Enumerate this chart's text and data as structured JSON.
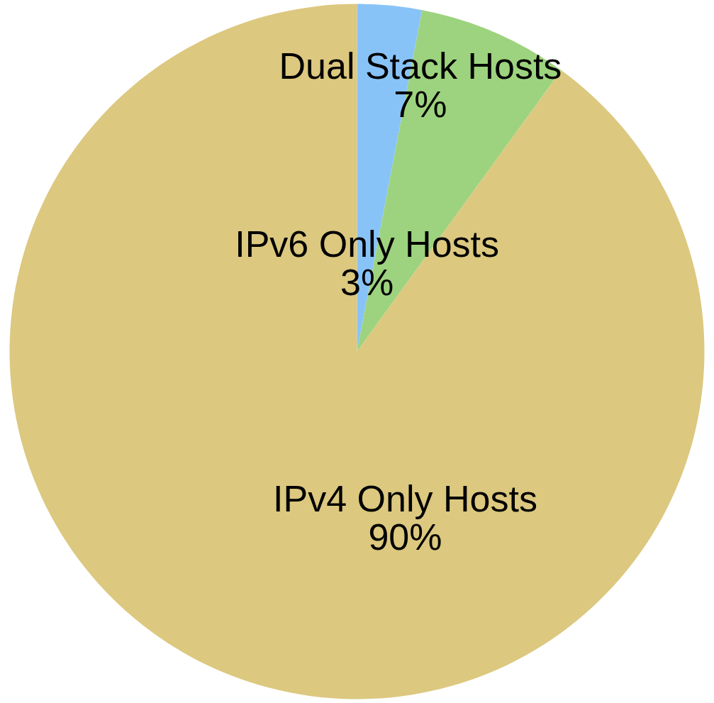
{
  "chart_data": {
    "type": "pie",
    "categories": [
      "IPv6 Only Hosts",
      "Dual Stack Hosts",
      "IPv4 Only Hosts"
    ],
    "values": [
      3,
      7,
      90
    ],
    "colors": [
      "#88c3f8",
      "#9dd37e",
      "#dcc87f"
    ],
    "value_labels": [
      "3%",
      "7%",
      "90%"
    ]
  }
}
